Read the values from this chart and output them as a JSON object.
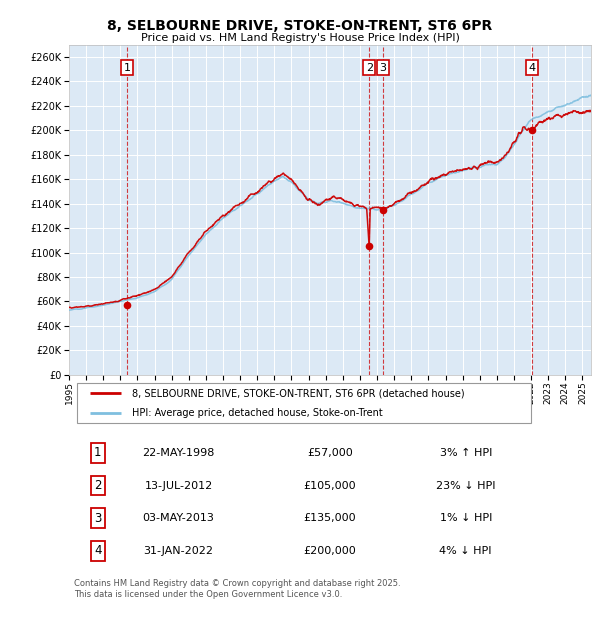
{
  "title": "8, SELBOURNE DRIVE, STOKE-ON-TRENT, ST6 6PR",
  "subtitle": "Price paid vs. HM Land Registry's House Price Index (HPI)",
  "plot_bg_color": "#dce9f5",
  "hpi_color": "#7fbfdf",
  "price_color": "#cc0000",
  "vline_color": "#cc0000",
  "ylim": [
    0,
    270000
  ],
  "yticks": [
    0,
    20000,
    40000,
    60000,
    80000,
    100000,
    120000,
    140000,
    160000,
    180000,
    200000,
    220000,
    240000,
    260000
  ],
  "start_year": 1995.0,
  "end_year": 2025.5,
  "transactions": [
    {
      "num": 1,
      "date": "22-MAY-1998",
      "year": 1998.38,
      "price": 57000,
      "pct": "3%",
      "dir": "↑"
    },
    {
      "num": 2,
      "date": "13-JUL-2012",
      "year": 2012.54,
      "price": 105000,
      "pct": "23%",
      "dir": "↓"
    },
    {
      "num": 3,
      "date": "03-MAY-2013",
      "year": 2013.34,
      "price": 135000,
      "pct": "1%",
      "dir": "↓"
    },
    {
      "num": 4,
      "date": "31-JAN-2022",
      "year": 2022.08,
      "price": 200000,
      "pct": "4%",
      "dir": "↓"
    }
  ],
  "legend_line1": "8, SELBOURNE DRIVE, STOKE-ON-TRENT, ST6 6PR (detached house)",
  "legend_line2": "HPI: Average price, detached house, Stoke-on-Trent",
  "footer": "Contains HM Land Registry data © Crown copyright and database right 2025.\nThis data is licensed under the Open Government Licence v3.0.",
  "hpi_keypoints": [
    [
      1995.0,
      53000
    ],
    [
      1996.0,
      54500
    ],
    [
      1997.0,
      57000
    ],
    [
      1998.0,
      60000
    ],
    [
      1999.0,
      63000
    ],
    [
      2000.0,
      68000
    ],
    [
      2001.0,
      78000
    ],
    [
      2002.0,
      98000
    ],
    [
      2003.0,
      115000
    ],
    [
      2004.0,
      128000
    ],
    [
      2005.0,
      138000
    ],
    [
      2006.0,
      148000
    ],
    [
      2007.0,
      158000
    ],
    [
      2007.5,
      162000
    ],
    [
      2008.0,
      158000
    ],
    [
      2008.5,
      150000
    ],
    [
      2009.0,
      143000
    ],
    [
      2009.5,
      140000
    ],
    [
      2010.0,
      141000
    ],
    [
      2010.5,
      143000
    ],
    [
      2011.0,
      141000
    ],
    [
      2011.5,
      138000
    ],
    [
      2012.0,
      136000
    ],
    [
      2012.5,
      136500
    ],
    [
      2013.0,
      135000
    ],
    [
      2013.5,
      136000
    ],
    [
      2014.0,
      139000
    ],
    [
      2014.5,
      143000
    ],
    [
      2015.0,
      148000
    ],
    [
      2015.5,
      152000
    ],
    [
      2016.0,
      157000
    ],
    [
      2016.5,
      160000
    ],
    [
      2017.0,
      163000
    ],
    [
      2017.5,
      165000
    ],
    [
      2018.0,
      167000
    ],
    [
      2018.5,
      169000
    ],
    [
      2019.0,
      170000
    ],
    [
      2019.5,
      172000
    ],
    [
      2020.0,
      172000
    ],
    [
      2020.5,
      178000
    ],
    [
      2021.0,
      188000
    ],
    [
      2021.5,
      200000
    ],
    [
      2022.0,
      208000
    ],
    [
      2022.5,
      212000
    ],
    [
      2023.0,
      215000
    ],
    [
      2023.5,
      218000
    ],
    [
      2024.0,
      220000
    ],
    [
      2024.5,
      223000
    ],
    [
      2025.0,
      226000
    ],
    [
      2025.5,
      228000
    ]
  ],
  "price_keypoints": [
    [
      1995.0,
      55000
    ],
    [
      1996.0,
      56000
    ],
    [
      1997.0,
      58000
    ],
    [
      1998.0,
      61000
    ],
    [
      1999.0,
      65000
    ],
    [
      2000.0,
      70000
    ],
    [
      2001.0,
      80000
    ],
    [
      2002.0,
      100000
    ],
    [
      2003.0,
      117000
    ],
    [
      2004.0,
      130000
    ],
    [
      2005.0,
      140000
    ],
    [
      2006.0,
      150000
    ],
    [
      2007.0,
      160000
    ],
    [
      2007.5,
      164000
    ],
    [
      2008.0,
      159000
    ],
    [
      2008.5,
      151000
    ],
    [
      2009.0,
      143000
    ],
    [
      2009.5,
      140000
    ],
    [
      2010.0,
      142000
    ],
    [
      2010.5,
      145000
    ],
    [
      2011.0,
      143000
    ],
    [
      2011.5,
      140000
    ],
    [
      2012.0,
      138000
    ],
    [
      2012.4,
      136000
    ],
    [
      2012.54,
      105000
    ],
    [
      2012.6,
      136000
    ],
    [
      2013.0,
      137000
    ],
    [
      2013.3,
      136000
    ],
    [
      2013.34,
      135000
    ],
    [
      2013.4,
      136000
    ],
    [
      2014.0,
      140000
    ],
    [
      2014.5,
      144000
    ],
    [
      2015.0,
      149000
    ],
    [
      2015.5,
      153000
    ],
    [
      2016.0,
      158000
    ],
    [
      2016.5,
      161000
    ],
    [
      2017.0,
      164000
    ],
    [
      2017.5,
      166000
    ],
    [
      2018.0,
      168000
    ],
    [
      2018.5,
      170000
    ],
    [
      2019.0,
      171000
    ],
    [
      2019.5,
      173000
    ],
    [
      2020.0,
      173000
    ],
    [
      2020.5,
      180000
    ],
    [
      2021.0,
      190000
    ],
    [
      2021.5,
      202000
    ],
    [
      2022.0,
      200000
    ],
    [
      2022.08,
      200000
    ],
    [
      2022.5,
      207000
    ],
    [
      2023.0,
      210000
    ],
    [
      2023.5,
      212000
    ],
    [
      2024.0,
      213000
    ],
    [
      2024.5,
      215000
    ],
    [
      2025.0,
      215000
    ],
    [
      2025.5,
      216000
    ]
  ]
}
